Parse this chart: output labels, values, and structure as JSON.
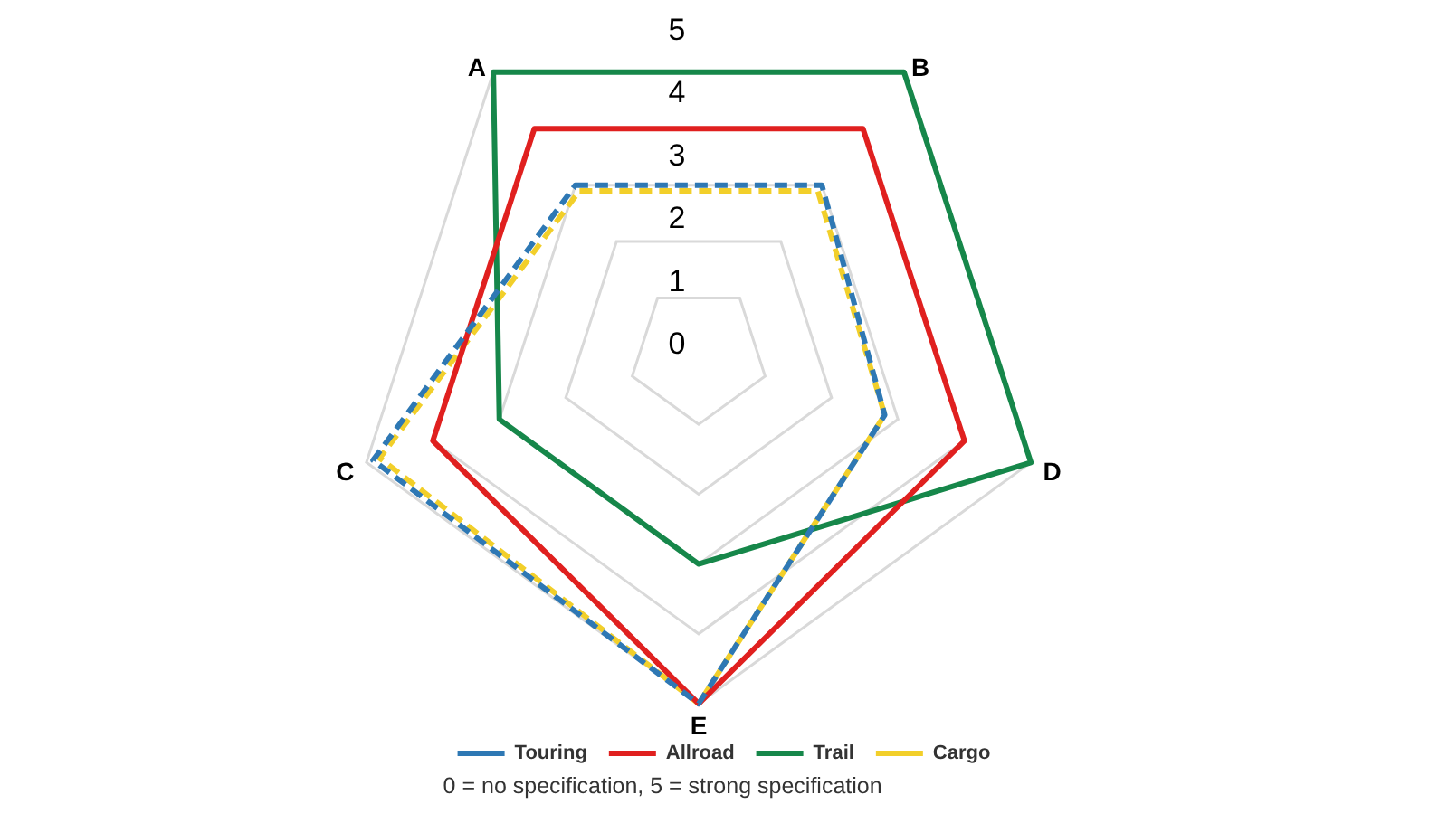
{
  "chart_data": {
    "type": "radar",
    "categories": [
      "A",
      "B",
      "D",
      "E",
      "C"
    ],
    "series": [
      {
        "name": "Touring",
        "color": "#2e78b4",
        "values": [
          3,
          3,
          2.8,
          5,
          4.9
        ],
        "line_style": "dashed"
      },
      {
        "name": "Allroad",
        "color": "#e0201f",
        "values": [
          4,
          4,
          4,
          5,
          4
        ],
        "line_style": "solid"
      },
      {
        "name": "Trail",
        "color": "#16874a",
        "values": [
          5,
          5,
          5,
          3,
          3
        ],
        "line_style": "solid"
      },
      {
        "name": "Cargo",
        "color": "#f2cf2a",
        "values": [
          2.9,
          2.9,
          2.8,
          5,
          4.8
        ],
        "line_style": "dashed"
      }
    ],
    "ylim": [
      0,
      5
    ],
    "yticks": [
      0,
      1,
      2,
      3,
      4,
      5
    ],
    "grid": true,
    "legend": "bottom",
    "annotations": [
      "0 = no specification, 5 = strong specification"
    ]
  }
}
